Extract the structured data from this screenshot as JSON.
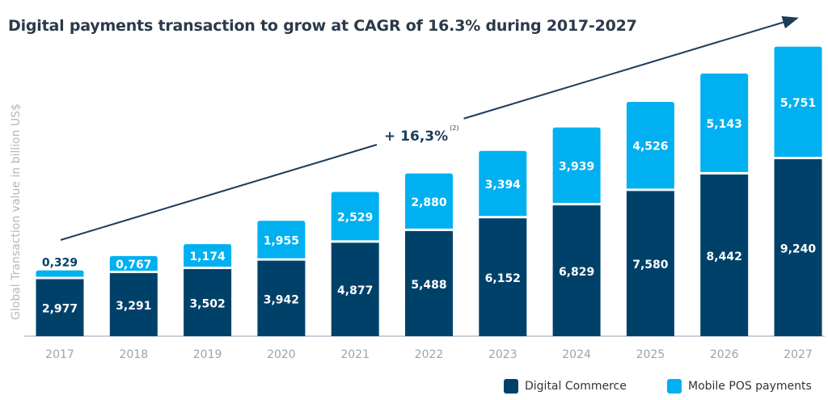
{
  "chart_data": {
    "type": "bar",
    "stacked": true,
    "title": "Digital payments transaction to grow at CAGR of 16.3% during 2017-2027",
    "ylabel": "Global Transaction value in billion  US$",
    "xlabel": "",
    "categories": [
      "2017",
      "2018",
      "2019",
      "2020",
      "2021",
      "2022",
      "2023",
      "2024",
      "2025",
      "2026",
      "2027"
    ],
    "series": [
      {
        "name": "Digital Commerce",
        "color": "#00416a",
        "values": [
          2.977,
          3.291,
          3.502,
          3.942,
          4.877,
          5.488,
          6.152,
          6.829,
          7.58,
          8.442,
          9.24
        ],
        "labels": [
          "2,977",
          "3,291",
          "3,502",
          "3,942",
          "4,877",
          "5,488",
          "6,152",
          "6,829",
          "7,580",
          "8,442",
          "9,240"
        ]
      },
      {
        "name": "Mobile POS payments",
        "color": "#00b0f0",
        "values": [
          0.329,
          0.767,
          1.174,
          1.955,
          2.529,
          2.88,
          3.394,
          3.939,
          4.526,
          5.143,
          5.751
        ],
        "labels": [
          "0,329",
          "0,767",
          "1,174",
          "1,955",
          "2,529",
          "2,880",
          "3,394",
          "3,939",
          "4,526",
          "5,143",
          "5,751"
        ]
      }
    ],
    "annotation": {
      "text": "+ 16,3%",
      "superscript": "(2)"
    },
    "grid": false,
    "legend_position": "bottom-right"
  }
}
